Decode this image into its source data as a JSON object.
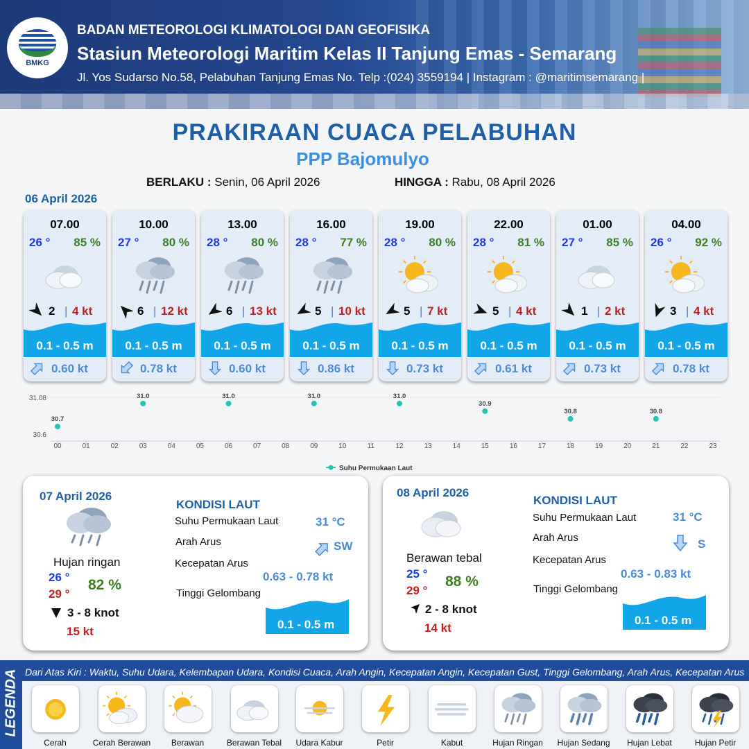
{
  "header": {
    "logo_text": "BMKG",
    "agency": "BADAN METEOROLOGI KLIMATOLOGI DAN GEOFISIKA",
    "station": "Stasiun Meteorologi Maritim Kelas II Tanjung Emas - Semarang",
    "address": "Jl. Yos Sudarso No.58, Pelabuhan Tanjung Emas No. Telp :(024) 3559194 | Instagram : @maritimsemarang |"
  },
  "title": "PRAKIRAAN CUACA PELABUHAN",
  "subtitle": "PPP Bajomulyo",
  "validity": {
    "from_label": "BERLAKU :",
    "from_value": "Senin, 06 April 2026",
    "to_label": "HINGGA :",
    "to_value": "Rabu, 08 April 2026"
  },
  "day1": {
    "date": "06 April 2026",
    "cards": [
      {
        "time": "07.00",
        "temp": "26 °",
        "hum": "85 %",
        "weather": "berawan-tebal-icon",
        "wind_dir": 135,
        "wind_speed": "2",
        "gust": "4 kt",
        "wave": "0.1 - 0.5 m",
        "current_dir": -45,
        "current_speed": "0.60 kt"
      },
      {
        "time": "10.00",
        "temp": "27 °",
        "hum": "80 %",
        "weather": "hujan-ringan-icon",
        "wind_dir": 315,
        "wind_speed": "6",
        "gust": "12 kt",
        "wave": "0.1 - 0.5 m",
        "current_dir": 135,
        "current_speed": "0.78 kt"
      },
      {
        "time": "13.00",
        "temp": "28 °",
        "hum": "80 %",
        "weather": "hujan-ringan-icon",
        "wind_dir": 235,
        "wind_speed": "6",
        "gust": "13 kt",
        "wave": "0.1 - 0.5 m",
        "current_dir": 90,
        "current_speed": "0.60 kt"
      },
      {
        "time": "16.00",
        "temp": "28 °",
        "hum": "77 %",
        "weather": "hujan-ringan-icon",
        "wind_dir": 240,
        "wind_speed": "5",
        "gust": "10 kt",
        "wave": "0.1 - 0.5 m",
        "current_dir": 90,
        "current_speed": "0.86 kt"
      },
      {
        "time": "19.00",
        "temp": "28 °",
        "hum": "80 %",
        "weather": "cerah-berawan-icon",
        "wind_dir": 240,
        "wind_speed": "5",
        "gust": "7 kt",
        "wave": "0.1 - 0.5 m",
        "current_dir": 90,
        "current_speed": "0.73 kt"
      },
      {
        "time": "22.00",
        "temp": "28 °",
        "hum": "81 %",
        "weather": "cerah-berawan-icon",
        "wind_dir": 110,
        "wind_speed": "5",
        "gust": "4 kt",
        "wave": "0.1 - 0.5 m",
        "current_dir": -45,
        "current_speed": "0.61 kt"
      },
      {
        "time": "01.00",
        "temp": "27 °",
        "hum": "85 %",
        "weather": "berawan-tebal-icon",
        "wind_dir": 135,
        "wind_speed": "1",
        "gust": "2 kt",
        "wave": "0.1 - 0.5 m",
        "current_dir": -45,
        "current_speed": "0.73 kt"
      },
      {
        "time": "04.00",
        "temp": "26 °",
        "hum": "92 %",
        "weather": "cerah-berawan-icon",
        "wind_dir": 200,
        "wind_speed": "3",
        "gust": "4 kt",
        "wave": "0.1 - 0.5 m",
        "current_dir": -45,
        "current_speed": "0.78 kt"
      }
    ]
  },
  "chart_data": {
    "type": "scatter",
    "x": [
      0,
      3,
      6,
      9,
      12,
      15,
      18,
      21
    ],
    "series": [
      {
        "name": "Suhu Permukaan Laut",
        "values": [
          30.7,
          31.0,
          31.0,
          31.0,
          31.0,
          30.9,
          30.8,
          30.8
        ],
        "color": "#27c3b5"
      }
    ],
    "x_ticks": [
      "00",
      "01",
      "02",
      "03",
      "04",
      "05",
      "06",
      "07",
      "08",
      "09",
      "10",
      "11",
      "12",
      "13",
      "14",
      "15",
      "16",
      "17",
      "18",
      "19",
      "20",
      "21",
      "22",
      "23"
    ],
    "y_ticks": [
      "31.08",
      "30.6"
    ],
    "ylim": [
      30.6,
      31.08
    ],
    "xlim": [
      0,
      23
    ],
    "point_labels": [
      "30.7",
      "31.0",
      "31.0",
      "31.0",
      "31.0",
      "30.9",
      "30.8",
      "30.8"
    ],
    "legend": "bottom-center",
    "grid": "horizontal"
  },
  "day2": {
    "date": "07 April 2026",
    "condition": "Hujan ringan",
    "weather": "hujan-ringan-icon",
    "tmin": "26 °",
    "tmax": "29 °",
    "hum": "82 %",
    "wind": "3  - 8 knot",
    "wind_dir": 0,
    "gust": "15 kt",
    "kondisi_title": "KONDISI LAUT",
    "sst_label": "Suhu Permukaan Laut",
    "sst_value": "31 °C",
    "dir_label": "Arah Arus",
    "dir_value": "SW",
    "spd_label": "Kecepatan Arus",
    "spd_value": "0.63 - 0.78 kt",
    "wave_label": "Tinggi Gelombang",
    "wave_value": "0.1 - 0.5 m"
  },
  "day3": {
    "date": "08 April 2026",
    "condition": "Berawan tebal",
    "weather": "berawan-tebal-icon",
    "tmin": "25 °",
    "tmax": "29 °",
    "hum": "88 %",
    "wind": "2  - 8 knot",
    "wind_dir": 145,
    "gust": "14 kt",
    "kondisi_title": "KONDISI LAUT",
    "sst_label": "Suhu Permukaan Laut",
    "sst_value": "31 °C",
    "dir_label": "Arah Arus",
    "dir_value": "S",
    "spd_label": "Kecepatan Arus",
    "spd_value": "0.63 - 0.83 kt",
    "wave_label": "Tinggi Gelombang",
    "wave_value": "0.1 - 0.5 m"
  },
  "legend": {
    "title": "LEGENDA",
    "description": "Dari Atas Kiri : Waktu, Suhu Udara, Kelembapan Udara, Kondisi Cuaca, Arah Angin, Kecepatan Angin, Kecepatan Gust, Tinggi Gelombang, Arah Arus, Kecepatan Arus",
    "items": [
      {
        "label": "Cerah",
        "icon": "cerah-icon"
      },
      {
        "label": "Cerah Berawan",
        "icon": "cerah-berawan-icon"
      },
      {
        "label": "Berawan",
        "icon": "berawan-icon"
      },
      {
        "label": "Berawan Tebal",
        "icon": "berawan-tebal-icon"
      },
      {
        "label": "Udara Kabur",
        "icon": "udara-kabur-icon"
      },
      {
        "label": "Petir",
        "icon": "petir-icon"
      },
      {
        "label": "Kabut",
        "icon": "kabut-icon"
      },
      {
        "label": "Hujan Ringan",
        "icon": "hujan-ringan-icon"
      },
      {
        "label": "Hujan Sedang",
        "icon": "hujan-sedang-icon"
      },
      {
        "label": "Hujan Lebat",
        "icon": "hujan-lebat-icon"
      },
      {
        "label": "Hujan Petir",
        "icon": "hujan-petir-icon"
      }
    ]
  },
  "colors": {
    "primary": "#1f5fa8",
    "accent": "#3d8fe0",
    "wave": "#12a6e8",
    "temp": "#1a3ce0",
    "humidity": "#3e7f22",
    "gust": "#c41d1d"
  }
}
